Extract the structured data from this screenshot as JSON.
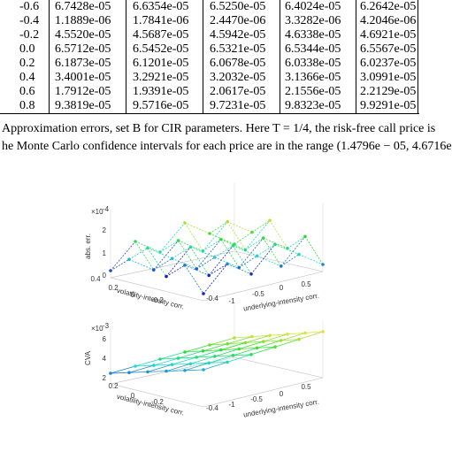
{
  "table": {
    "rows": [
      [
        "-0.6",
        "6.7428e-05",
        "6.6354e-05",
        "6.5250e-05",
        "6.4024e-05",
        "6.2642e-05"
      ],
      [
        "-0.4",
        "1.1889e-06",
        "1.7841e-06",
        "2.4470e-06",
        "3.3282e-06",
        "4.2046e-06"
      ],
      [
        "-0.2",
        "4.5520e-05",
        "4.5687e-05",
        "4.5942e-05",
        "4.6338e-05",
        "4.6921e-05"
      ],
      [
        "0.0",
        "6.5712e-05",
        "6.5452e-05",
        "6.5321e-05",
        "6.5344e-05",
        "6.5567e-05"
      ],
      [
        "0.2",
        "6.1873e-05",
        "6.1201e-05",
        "6.0678e-05",
        "6.0338e-05",
        "6.0237e-05"
      ],
      [
        "0.4",
        "3.4001e-05",
        "3.2921e-05",
        "3.2032e-05",
        "3.1366e-05",
        "3.0991e-05"
      ],
      [
        "0.6",
        "1.7912e-05",
        "1.9391e-05",
        "2.0617e-05",
        "2.1556e-05",
        "2.2129e-05"
      ],
      [
        "0.8",
        "9.3819e-05",
        "9.5716e-05",
        "9.7231e-05",
        "9.8323e-05",
        "9.9291e-05"
      ]
    ]
  },
  "caption": {
    "lines": [
      "Approximation errors, set B for CIR parameters. Here T = 1/4, the risk-free call price is",
      "he Monte Carlo confidence intervals for each price are in the range (1.4796e − 05, 4.6716e"
    ]
  },
  "figures": [
    {
      "multiplier": "×10",
      "exponent": "-4",
      "zlabel": "abs. err.",
      "zticks": [
        "2",
        "1",
        "0"
      ],
      "xlabel": "volatility-intensity corr.",
      "xticks": [
        "0.4",
        "0.2",
        "0",
        "-0.2",
        "-0.4"
      ],
      "ylabel": "underlying-intensity corr.",
      "yticks": [
        "-1",
        "-0.5",
        "0",
        "0.5"
      ]
    },
    {
      "multiplier": "×10",
      "exponent": "-3",
      "zlabel": "CVA",
      "zticks": [
        "6",
        "4",
        "2"
      ],
      "xlabel": "volatility-intensity corr.",
      "xticks": [
        "0.2",
        "0",
        "-0.2",
        "-0.4"
      ],
      "ylabel": "underlying-intensity corr.",
      "yticks": [
        "-1",
        "-0.5",
        "0",
        "0.5"
      ]
    }
  ]
}
